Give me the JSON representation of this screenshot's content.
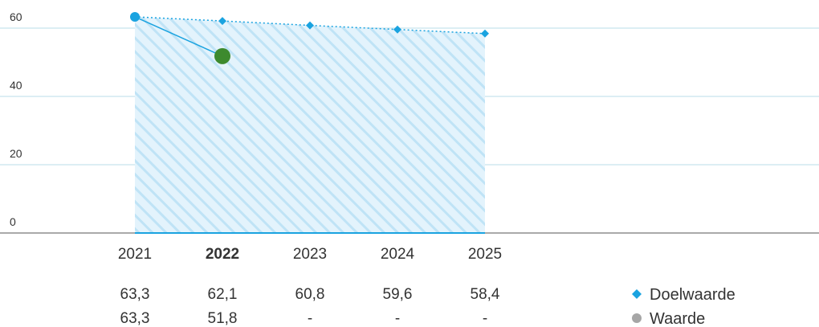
{
  "chart_data": {
    "type": "line",
    "categories": [
      "2021",
      "2022",
      "2023",
      "2024",
      "2025"
    ],
    "highlight_category": "2022",
    "ylim": [
      0,
      65
    ],
    "yticks": [
      "0",
      "20",
      "40",
      "60"
    ],
    "grid": true,
    "legend_placement": "bottom-right",
    "series": [
      {
        "name": "Doelwaarde",
        "values": [
          63.3,
          62.1,
          60.8,
          59.6,
          58.4
        ],
        "labels": [
          "63,3",
          "62,1",
          "60,8",
          "59,6",
          "58,4"
        ],
        "marker": "diamond",
        "color": "#1aa3e0"
      },
      {
        "name": "Waarde",
        "values": [
          63.3,
          51.8,
          null,
          null,
          null
        ],
        "labels": [
          "63,3",
          "51,8",
          "-",
          "-",
          "-"
        ],
        "marker": "circle",
        "color": "#3d8a2e",
        "legend_color": "#a6a6a6"
      }
    ]
  }
}
